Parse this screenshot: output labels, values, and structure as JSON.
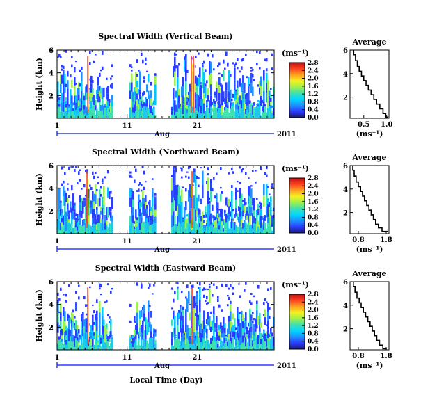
{
  "xlabel": "Local Time (Day)",
  "month": "Aug",
  "year": "2011",
  "x_ticks": [
    "1",
    "11",
    "21"
  ],
  "colorbar": {
    "unit": "(ms⁻¹)",
    "ticks": [
      "2.8",
      "2.4",
      "2.0",
      "1.6",
      "1.2",
      "0.8",
      "0.4",
      "0.0"
    ],
    "range": [
      0,
      2.8
    ],
    "colors": [
      "#1a1a6e",
      "#2a3cff",
      "#1e90ff",
      "#00d8ff",
      "#3fe0b0",
      "#9ef04a",
      "#f5f020",
      "#ffa020",
      "#ff4020",
      "#c01010"
    ]
  },
  "chart_data": [
    {
      "type": "heatmap",
      "title": "Spectral Width (Vertical Beam)",
      "ylabel": "Height (km)",
      "y_ticks": [
        "6",
        "4",
        "2"
      ],
      "ylim": [
        0,
        6
      ],
      "xlim": [
        1,
        32
      ],
      "data_gaps_days": [
        [
          9,
          11.3
        ],
        [
          15.2,
          17.3
        ]
      ],
      "high_spikes_days": [
        5.3,
        20.1,
        20.4
      ]
    },
    {
      "type": "heatmap",
      "title": "Spectral Width (Northward Beam)",
      "ylabel": "Height (km)",
      "y_ticks": [
        "6",
        "4",
        "2"
      ],
      "ylim": [
        0,
        6
      ],
      "xlim": [
        1,
        32
      ],
      "data_gaps_days": [
        [
          9,
          11.3
        ],
        [
          15.2,
          17.3
        ]
      ],
      "high_spikes_days": [
        5.2,
        20.2
      ]
    },
    {
      "type": "heatmap",
      "title": "Spectral Width (Eastward Beam)",
      "ylabel": "Height (km)",
      "y_ticks": [
        "6",
        "4",
        "2"
      ],
      "ylim": [
        0,
        6
      ],
      "xlim": [
        1,
        32
      ],
      "data_gaps_days": [
        [
          9,
          11.3
        ],
        [
          15.2,
          17.3
        ]
      ],
      "high_spikes_days": [
        5.3,
        20.2
      ]
    },
    {
      "type": "line",
      "title": "Average",
      "xlabel": "(ms⁻¹)",
      "x_ticks": [
        "0.5",
        "1.0"
      ],
      "y_ticks": [
        "6",
        "4",
        "2"
      ],
      "xlim": [
        0.2,
        1.05
      ],
      "ylim": [
        0.2,
        6
      ],
      "x": [
        0.28,
        0.32,
        0.36,
        0.4,
        0.45,
        0.5,
        0.55,
        0.6,
        0.66,
        0.72,
        0.78,
        0.85,
        0.92,
        0.98,
        1.02
      ],
      "y": [
        6.0,
        5.6,
        5.1,
        4.6,
        4.2,
        3.8,
        3.4,
        3.0,
        2.6,
        2.2,
        1.8,
        1.4,
        1.0,
        0.6,
        0.3
      ]
    },
    {
      "type": "line",
      "title": "Average",
      "xlabel": "(ms⁻¹)",
      "x_ticks": [
        "0.8",
        "1.8"
      ],
      "y_ticks": [
        "6",
        "4",
        "2"
      ],
      "xlim": [
        0.5,
        1.9
      ],
      "ylim": [
        0.2,
        6
      ],
      "x": [
        0.6,
        0.65,
        0.72,
        0.8,
        0.88,
        0.95,
        1.02,
        1.1,
        1.18,
        1.26,
        1.34,
        1.42,
        1.52,
        1.65,
        1.85
      ],
      "y": [
        6.0,
        5.6,
        5.1,
        4.6,
        4.2,
        3.8,
        3.4,
        3.0,
        2.6,
        2.2,
        1.8,
        1.4,
        1.0,
        0.7,
        0.4
      ]
    },
    {
      "type": "line",
      "title": "Average",
      "xlabel": "(ms⁻¹)",
      "x_ticks": [
        "0.8",
        "1.8"
      ],
      "y_ticks": [
        "6",
        "4",
        "2"
      ],
      "xlim": [
        0.5,
        1.9
      ],
      "ylim": [
        0.2,
        6
      ],
      "x": [
        0.62,
        0.68,
        0.75,
        0.83,
        0.9,
        0.98,
        1.06,
        1.14,
        1.22,
        1.3,
        1.38,
        1.46,
        1.56,
        1.68,
        1.82
      ],
      "y": [
        6.0,
        5.6,
        5.1,
        4.6,
        4.2,
        3.8,
        3.4,
        3.0,
        2.6,
        2.2,
        1.8,
        1.4,
        1.0,
        0.6,
        0.3
      ]
    }
  ]
}
